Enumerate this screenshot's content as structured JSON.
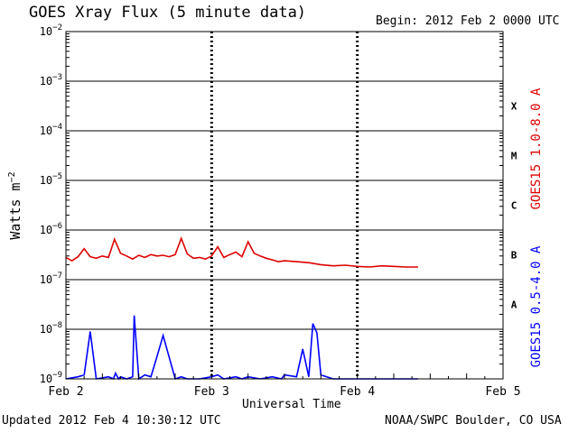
{
  "header": {
    "title": "GOES Xray Flux (5 minute data)",
    "begin": "Begin:  2012 Feb 2 0000 UTC"
  },
  "footer": {
    "updated": "Updated 2012 Feb  4 10:30:12 UTC",
    "credit": "NOAA/SWPC Boulder, CO USA"
  },
  "colors": {
    "long_channel": "#dd0000",
    "short_channel": "#0000ff",
    "axes": "#000000"
  },
  "chart_data": {
    "type": "line",
    "title": "GOES Xray Flux (5 minute data)",
    "xlabel": "Universal Time",
    "ylabel": "Watts m-2",
    "yscale": "log",
    "ylim": [
      1e-09,
      0.01
    ],
    "xlim": [
      "2012-02-02 00:00",
      "2012-02-05 00:00"
    ],
    "x_ticks": [
      "Feb 2",
      "Feb 3",
      "Feb 4",
      "Feb 5"
    ],
    "y_ticks": [
      "1e-9",
      "1e-8",
      "1e-7",
      "1e-6",
      "1e-5",
      "1e-4",
      "1e-3",
      "1e-2"
    ],
    "flare_classes": [
      "A",
      "B",
      "C",
      "M",
      "X"
    ],
    "grid": true,
    "legend_position": "right",
    "series": [
      {
        "name": "GOES15 1.0-8.0 A",
        "color": "#dd0000",
        "x": [
          "2012-02-02 00:00",
          "2012-02-02 01:00",
          "2012-02-02 02:00",
          "2012-02-02 03:00",
          "2012-02-02 04:00",
          "2012-02-02 05:00",
          "2012-02-02 06:00",
          "2012-02-02 07:00",
          "2012-02-02 08:00",
          "2012-02-02 09:00",
          "2012-02-02 10:00",
          "2012-02-02 11:00",
          "2012-02-02 12:00",
          "2012-02-02 13:00",
          "2012-02-02 14:00",
          "2012-02-02 15:00",
          "2012-02-02 16:00",
          "2012-02-02 17:00",
          "2012-02-02 18:00",
          "2012-02-02 19:00",
          "2012-02-02 20:00",
          "2012-02-02 21:00",
          "2012-02-02 22:00",
          "2012-02-02 23:00",
          "2012-02-03 00:00",
          "2012-02-03 01:00",
          "2012-02-03 02:00",
          "2012-02-03 03:00",
          "2012-02-03 04:00",
          "2012-02-03 05:00",
          "2012-02-03 06:00",
          "2012-02-03 07:00",
          "2012-02-03 08:00",
          "2012-02-03 09:00",
          "2012-02-03 10:00",
          "2012-02-03 11:00",
          "2012-02-03 12:00",
          "2012-02-03 14:00",
          "2012-02-03 16:00",
          "2012-02-03 18:00",
          "2012-02-03 20:00",
          "2012-02-03 22:00",
          "2012-02-04 00:00",
          "2012-02-04 02:00",
          "2012-02-04 04:00",
          "2012-02-04 06:00",
          "2012-02-04 08:00",
          "2012-02-04 10:00"
        ],
        "values": [
          2.8e-07,
          2.4e-07,
          2.9e-07,
          4.2e-07,
          2.9e-07,
          2.7e-07,
          3e-07,
          2.8e-07,
          6.5e-07,
          3.4e-07,
          3e-07,
          2.6e-07,
          3.1e-07,
          2.8e-07,
          3.2e-07,
          3e-07,
          3.1e-07,
          2.9e-07,
          3.2e-07,
          6.8e-07,
          3.3e-07,
          2.7e-07,
          2.8e-07,
          2.6e-07,
          3e-07,
          4.6e-07,
          2.8e-07,
          3.2e-07,
          3.6e-07,
          2.9e-07,
          5.8e-07,
          3.4e-07,
          3e-07,
          2.7e-07,
          2.5e-07,
          2.3e-07,
          2.4e-07,
          2.3e-07,
          2.2e-07,
          2e-07,
          1.9e-07,
          1.95e-07,
          1.85e-07,
          1.8e-07,
          1.9e-07,
          1.85e-07,
          1.8e-07,
          1.8e-07
        ]
      },
      {
        "name": "GOES15 0.5-4.0 A",
        "color": "#0000ff",
        "x": [
          "2012-02-02 00:00",
          "2012-02-02 02:00",
          "2012-02-02 03:00",
          "2012-02-02 04:00",
          "2012-02-02 05:00",
          "2012-02-02 07:00",
          "2012-02-02 07:50",
          "2012-02-02 08:10",
          "2012-02-02 08:40",
          "2012-02-02 09:00",
          "2012-02-02 10:00",
          "2012-02-02 11:00",
          "2012-02-02 11:15",
          "2012-02-02 12:00",
          "2012-02-02 13:00",
          "2012-02-02 14:00",
          "2012-02-02 15:00",
          "2012-02-02 16:00",
          "2012-02-02 18:00",
          "2012-02-02 19:00",
          "2012-02-02 20:00",
          "2012-02-02 22:00",
          "2012-02-03 00:00",
          "2012-02-03 01:00",
          "2012-02-03 02:00",
          "2012-02-03 04:00",
          "2012-02-03 05:00",
          "2012-02-03 06:00",
          "2012-02-03 08:00",
          "2012-02-03 10:00",
          "2012-02-03 11:30",
          "2012-02-03 12:00",
          "2012-02-03 14:00",
          "2012-02-03 15:00",
          "2012-02-03 16:00",
          "2012-02-03 16:40",
          "2012-02-03 17:20",
          "2012-02-03 18:00",
          "2012-02-03 20:00",
          "2012-02-04 00:00",
          "2012-02-04 04:00",
          "2012-02-04 08:00",
          "2012-02-04 10:00"
        ],
        "values": [
          1e-09,
          1.1e-09,
          1.2e-09,
          9e-09,
          1e-09,
          1.1e-09,
          1e-09,
          1.3e-09,
          1e-09,
          1.1e-09,
          1e-09,
          1.1e-09,
          1.9e-08,
          1e-09,
          1.2e-09,
          1.1e-09,
          2.8e-09,
          7.5e-09,
          1e-09,
          1.1e-09,
          1e-09,
          1e-09,
          1.1e-09,
          1.2e-09,
          1e-09,
          1.1e-09,
          1e-09,
          1.1e-09,
          1e-09,
          1.1e-09,
          1e-09,
          1.2e-09,
          1.1e-09,
          4e-09,
          1.1e-09,
          1.3e-08,
          8.5e-09,
          1.2e-09,
          1e-09,
          1e-09,
          1e-09,
          1e-09,
          1e-09
        ]
      }
    ]
  }
}
